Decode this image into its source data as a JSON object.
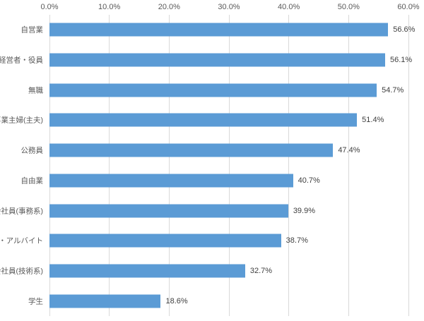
{
  "chart_data": {
    "type": "bar",
    "orientation": "horizontal",
    "title": "",
    "xlabel": "",
    "ylabel": "",
    "categories": [
      "自営業",
      "経営者・役員",
      "無職",
      "専業主婦(主夫)",
      "公務員",
      "自由業",
      "会社員(事務系)",
      "パート・アルバイト",
      "会社員(技術系)",
      "学生"
    ],
    "values": [
      56.6,
      56.1,
      54.7,
      51.4,
      47.4,
      40.7,
      39.9,
      38.7,
      32.7,
      18.6
    ],
    "value_labels": [
      "56.6%",
      "56.1%",
      "54.7%",
      "51.4%",
      "47.4%",
      "40.7%",
      "39.9%",
      "38.7%",
      "32.7%",
      "18.6%"
    ],
    "x_ticks": [
      {
        "value": 0,
        "label": "0.0%"
      },
      {
        "value": 10,
        "label": "10.0%"
      },
      {
        "value": 20,
        "label": "20.0%"
      },
      {
        "value": 30,
        "label": "30.0%"
      },
      {
        "value": 40,
        "label": "40.0%"
      },
      {
        "value": 50,
        "label": "50.0%"
      },
      {
        "value": 60,
        "label": "60.0%"
      }
    ],
    "xlim": [
      0,
      60
    ],
    "grid": "vertical",
    "legend": "none",
    "colors": {
      "bar": "#5b9bd5",
      "gridline": "#d9d9d9",
      "tick_label": "#595959",
      "category_label": "#595959",
      "value_label": "#404040",
      "background": "#ffffff"
    }
  }
}
